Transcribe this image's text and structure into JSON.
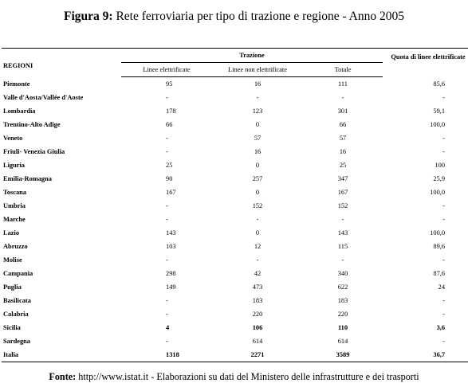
{
  "title": {
    "label": "Figura 9:",
    "text": " Rete ferroviaria per tipo di trazione e regione - Anno 2005"
  },
  "headers": {
    "regioni": "REGIONI",
    "trazione": "Trazione",
    "col1": "Linee elettrificate",
    "col2": "Linee non elettrificate",
    "col3": "Totale",
    "quota": "Quota di linee elettrificate"
  },
  "rows": [
    {
      "regione": "Piemonte",
      "elettr": "95",
      "non_elettr": "16",
      "totale": "111",
      "quota": "85,6"
    },
    {
      "regione": "Valle d'Aosta/Vallée d'Aoste",
      "elettr": "-",
      "non_elettr": "-",
      "totale": "-",
      "quota": "-"
    },
    {
      "regione": "Lombardia",
      "elettr": "178",
      "non_elettr": "123",
      "totale": "301",
      "quota": "59,1"
    },
    {
      "regione": "Trentino-Alto Adige",
      "elettr": "66",
      "non_elettr": "0",
      "totale": "66",
      "quota": "100,0"
    },
    {
      "regione": "Veneto",
      "elettr": "-",
      "non_elettr": "57",
      "totale": "57",
      "quota": "-"
    },
    {
      "regione": "Friuli- Venezia Giulia",
      "elettr": "-",
      "non_elettr": "16",
      "totale": "16",
      "quota": "-"
    },
    {
      "regione": "Liguria",
      "elettr": "25",
      "non_elettr": "0",
      "totale": "25",
      "quota": "100"
    },
    {
      "regione": "Emilia-Romagna",
      "elettr": "90",
      "non_elettr": "257",
      "totale": "347",
      "quota": "25,9"
    },
    {
      "regione": "Toscana",
      "elettr": "167",
      "non_elettr": "0",
      "totale": "167",
      "quota": "100,0"
    },
    {
      "regione": "Umbria",
      "elettr": "-",
      "non_elettr": "152",
      "totale": "152",
      "quota": "-"
    },
    {
      "regione": "Marche",
      "elettr": "-",
      "non_elettr": "-",
      "totale": "-",
      "quota": "-"
    },
    {
      "regione": "Lazio",
      "elettr": "143",
      "non_elettr": "0",
      "totale": "143",
      "quota": "100,0"
    },
    {
      "regione": "Abruzzo",
      "elettr": "103",
      "non_elettr": "12",
      "totale": "115",
      "quota": "89,6"
    },
    {
      "regione": "Molise",
      "elettr": "-",
      "non_elettr": "-",
      "totale": "-",
      "quota": "-"
    },
    {
      "regione": "Campania",
      "elettr": "298",
      "non_elettr": "42",
      "totale": "340",
      "quota": "87,6"
    },
    {
      "regione": "Puglia",
      "elettr": "149",
      "non_elettr": "473",
      "totale": "622",
      "quota": "24"
    },
    {
      "regione": "Basilicata",
      "elettr": "-",
      "non_elettr": "183",
      "totale": "183",
      "quota": "-"
    },
    {
      "regione": "Calabria",
      "elettr": "-",
      "non_elettr": "220",
      "totale": "220",
      "quota": "-"
    },
    {
      "regione": "Sicilia",
      "elettr": "4",
      "non_elettr": "106",
      "totale": "110",
      "quota": "3,6"
    },
    {
      "regione": "Sardegna",
      "elettr": "-",
      "non_elettr": "614",
      "totale": "614",
      "quota": "-"
    },
    {
      "regione": "Italia",
      "elettr": "1318",
      "non_elettr": "2271",
      "totale": "3589",
      "quota": "36,7"
    }
  ],
  "source": {
    "label": "Fonte:",
    "text": " http://www.istat.it - Elaborazioni su dati del Ministero delle infrastrutture e dei trasporti"
  }
}
